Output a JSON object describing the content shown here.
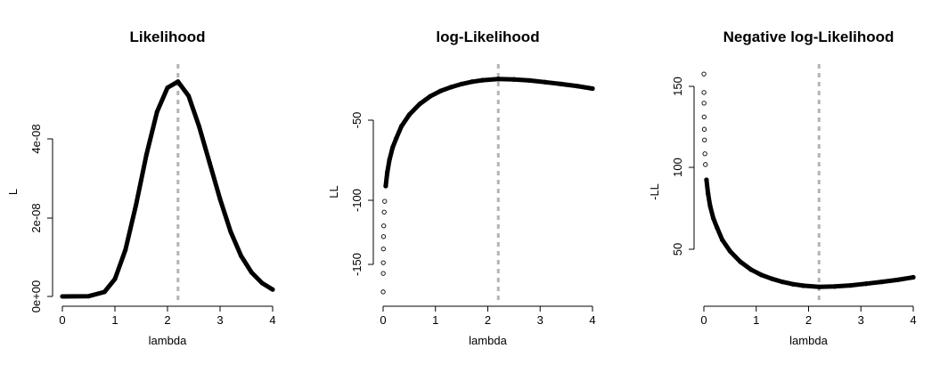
{
  "chart_data": [
    {
      "type": "line",
      "title": "Likelihood",
      "xlabel": "lambda",
      "ylabel": "L",
      "xlim": [
        0,
        4
      ],
      "ylim": [
        0,
        5.6e-08
      ],
      "x_ticks": [
        "0",
        "1",
        "2",
        "3",
        "4"
      ],
      "y_ticks": [
        "0e+00",
        "2e-08",
        "4e-08"
      ],
      "mle_line": 2.2,
      "series": [
        {
          "x": [
            0.0,
            0.5,
            0.8,
            1.0,
            1.2,
            1.4,
            1.6,
            1.8,
            2.0,
            2.2,
            2.4,
            2.6,
            2.8,
            3.0,
            3.2,
            3.4,
            3.6,
            3.8,
            4.0
          ],
          "values": [
            0,
            6e-11,
            1.1e-09,
            4.3e-09,
            1.15e-08,
            2.25e-08,
            3.5e-08,
            4.55e-08,
            5.15e-08,
            5.3e-08,
            4.95e-08,
            4.2e-08,
            3.3e-08,
            2.4e-08,
            1.6e-08,
            1e-08,
            5.9e-09,
            3.3e-09,
            1.7e-09
          ]
        }
      ]
    },
    {
      "type": "line",
      "title": "log-Likelihood",
      "xlabel": "lambda",
      "ylabel": "LL",
      "xlim": [
        0,
        4
      ],
      "ylim": [
        -165,
        -17
      ],
      "x_ticks": [
        "0",
        "1",
        "2",
        "3",
        "4"
      ],
      "y_ticks": [
        "-150",
        "-100",
        "-50"
      ],
      "mle_line": 2.2,
      "series": [
        {
          "x": [
            0.001,
            0.002,
            0.003,
            0.005,
            0.008,
            0.012,
            0.02,
            0.03,
            0.05,
            0.08,
            0.12,
            0.18,
            0.25,
            0.35,
            0.5,
            0.7,
            0.9,
            1.1,
            1.3,
            1.5,
            1.7,
            1.9,
            2.2,
            2.5,
            2.8,
            3.1,
            3.4,
            3.7,
            4.0
          ],
          "values": [
            -162,
            -150,
            -143,
            -134,
            -126,
            -119,
            -110,
            -103,
            -93,
            -84,
            -76,
            -68,
            -62,
            -54,
            -46.5,
            -39.5,
            -34.5,
            -31,
            -28.5,
            -26.5,
            -25,
            -24,
            -23.2,
            -23.5,
            -24.2,
            -25.3,
            -26.5,
            -27.8,
            -29.5
          ]
        }
      ]
    },
    {
      "type": "line",
      "title": "Negative log-Likelihood",
      "xlabel": "lambda",
      "ylabel": "-LL",
      "xlim": [
        0,
        4
      ],
      "ylim": [
        17,
        165
      ],
      "x_ticks": [
        "0",
        "1",
        "2",
        "3",
        "4"
      ],
      "y_ticks": [
        "50",
        "100",
        "150"
      ],
      "mle_line": 2.2,
      "series": [
        {
          "x": [
            0.001,
            0.002,
            0.003,
            0.005,
            0.008,
            0.012,
            0.02,
            0.03,
            0.05,
            0.08,
            0.12,
            0.18,
            0.25,
            0.35,
            0.5,
            0.7,
            0.9,
            1.1,
            1.3,
            1.5,
            1.7,
            1.9,
            2.2,
            2.5,
            2.8,
            3.1,
            3.4,
            3.7,
            4.0
          ],
          "values": [
            162,
            150,
            143,
            134,
            126,
            119,
            110,
            103,
            93,
            84,
            76,
            68,
            62,
            54,
            46.5,
            39.5,
            34.5,
            31,
            28.5,
            26.5,
            25,
            24,
            23.2,
            23.5,
            24.2,
            25.3,
            26.5,
            27.8,
            29.5
          ]
        }
      ]
    }
  ]
}
